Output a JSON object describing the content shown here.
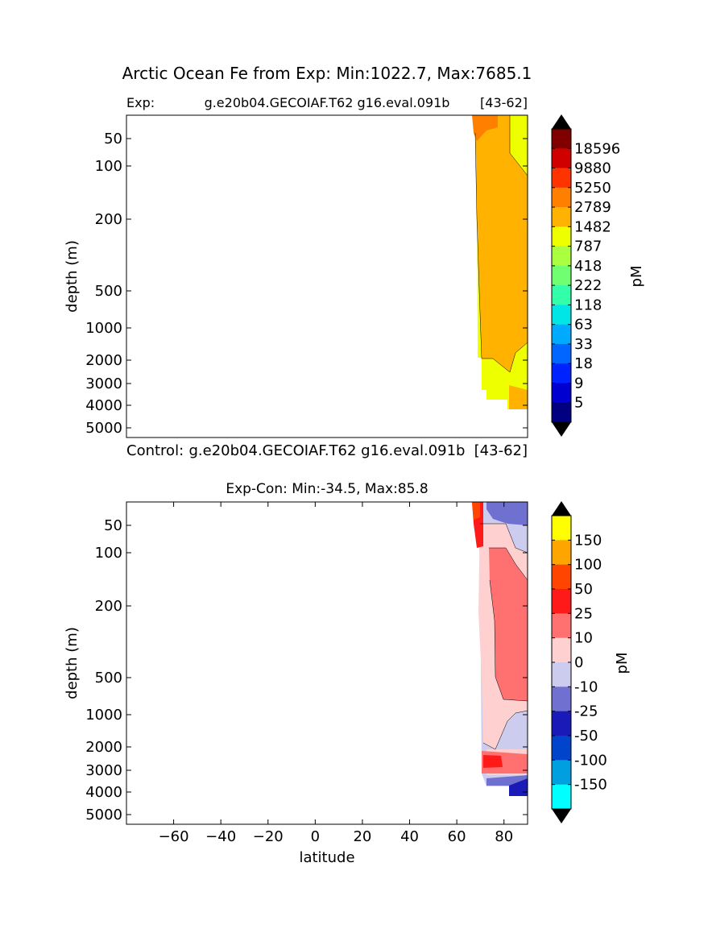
{
  "figure": {
    "suptitle": "Arctic Ocean Fe from Exp: Min:1022.7, Max:7685.1"
  },
  "chart_data": [
    {
      "type": "heatmap",
      "panel": "top",
      "title_left": "Exp:",
      "title_center": "g.e20b04.GECOIAF.T62 g16.eval.091b",
      "title_right": "[43-62]",
      "bottom_left": "Control:",
      "bottom_center": "g.e20b04.GECOIAF.T62 g16.eval.091b",
      "bottom_right": "[43-62]",
      "ylabel": "depth (m)",
      "xlim": [
        -80,
        90
      ],
      "yticks": [
        "50",
        "100",
        "200",
        "500",
        "1000",
        "2000",
        "3000",
        "4000",
        "5000"
      ],
      "colorbar": {
        "label": "pM",
        "labels": [
          "18596",
          "9880",
          "5250",
          "2789",
          "1482",
          "787",
          "418",
          "222",
          "118",
          "63",
          "33",
          "18",
          "9",
          "5"
        ],
        "colors": [
          "#800000",
          "#d00000",
          "#ff3300",
          "#ff7f00",
          "#ffb300",
          "#eeff00",
          "#aaff40",
          "#70ff70",
          "#33ffaa",
          "#00e5e5",
          "#00aaff",
          "#0066ff",
          "#0022ff",
          "#0000d0",
          "#000080"
        ],
        "extend_color": "#000000"
      }
    },
    {
      "type": "heatmap",
      "panel": "bottom",
      "title": "Exp-Con: Min:-34.5, Max:85.8",
      "ylabel": "depth (m)",
      "xlabel": "latitude",
      "xlim": [
        -80,
        90
      ],
      "xticks": [
        "−60",
        "−40",
        "−20",
        "0",
        "20",
        "40",
        "60",
        "80"
      ],
      "yticks": [
        "50",
        "100",
        "200",
        "500",
        "1000",
        "2000",
        "3000",
        "4000",
        "5000"
      ],
      "colorbar": {
        "label": "pM",
        "labels": [
          "150",
          "100",
          "50",
          "25",
          "10",
          "0",
          "-10",
          "-25",
          "-50",
          "-100",
          "-150"
        ],
        "colors": [
          "#ffff00",
          "#ffa500",
          "#ff4500",
          "#ff1a1a",
          "#ff7070",
          "#ffd0d0",
          "#ccccee",
          "#7070d0",
          "#1a1ab8",
          "#0044cc",
          "#00a0e0",
          "#00ffff"
        ],
        "extend_color": "#000000"
      }
    }
  ]
}
